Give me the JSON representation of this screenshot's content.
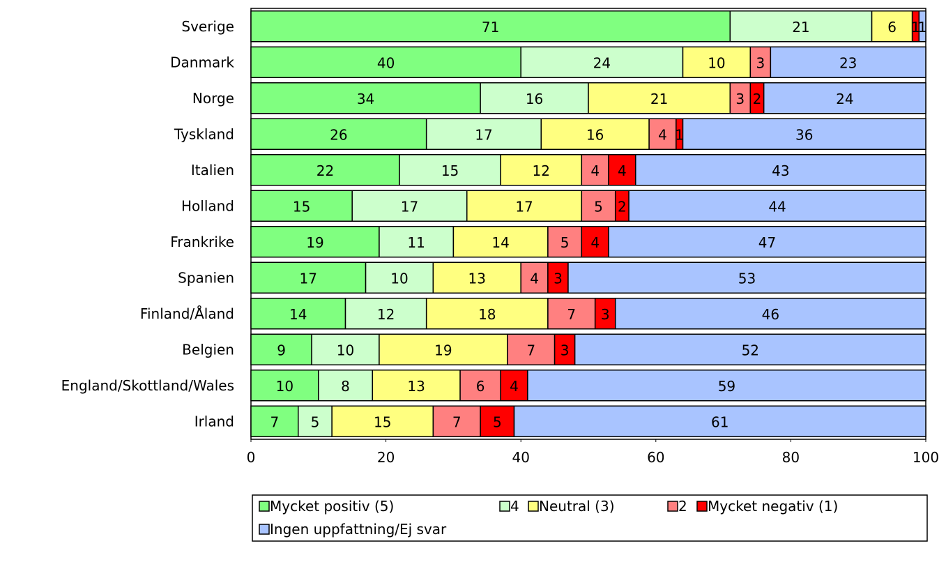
{
  "chart_data": {
    "type": "bar",
    "orientation": "horizontal",
    "stacked": true,
    "categories": [
      "Sverige",
      "Danmark",
      "Norge",
      "Tyskland",
      "Italien",
      "Holland",
      "Frankrike",
      "Spanien",
      "Finland/Åland",
      "Belgien",
      "England/Skottland/Wales",
      "Irland"
    ],
    "series": [
      {
        "name": "Mycket positiv (5)",
        "color": "#80ff80",
        "values": [
          71,
          40,
          34,
          26,
          22,
          15,
          19,
          17,
          14,
          9,
          10,
          7
        ]
      },
      {
        "name": "4",
        "color": "#ccffcc",
        "values": [
          21,
          24,
          16,
          17,
          15,
          17,
          11,
          10,
          12,
          10,
          8,
          5
        ]
      },
      {
        "name": "Neutral (3)",
        "color": "#ffff80",
        "values": [
          6,
          10,
          21,
          16,
          12,
          17,
          14,
          13,
          18,
          19,
          13,
          15
        ]
      },
      {
        "name": "2",
        "color": "#ff8080",
        "values": [
          0,
          3,
          3,
          4,
          4,
          5,
          5,
          4,
          7,
          7,
          6,
          7
        ]
      },
      {
        "name": "Mycket negativ (1)",
        "color": "#ff0000",
        "values": [
          1,
          0,
          2,
          1,
          4,
          2,
          4,
          3,
          3,
          3,
          4,
          5
        ]
      },
      {
        "name": "Ingen uppfattning/Ej svar",
        "color": "#a9c4ff",
        "values": [
          1,
          23,
          24,
          36,
          43,
          44,
          47,
          53,
          46,
          52,
          59,
          61
        ]
      }
    ],
    "xlim": [
      0,
      100
    ],
    "xticks": [
      0,
      20,
      40,
      60,
      80,
      100
    ],
    "grid": false,
    "legend": "bottom"
  }
}
